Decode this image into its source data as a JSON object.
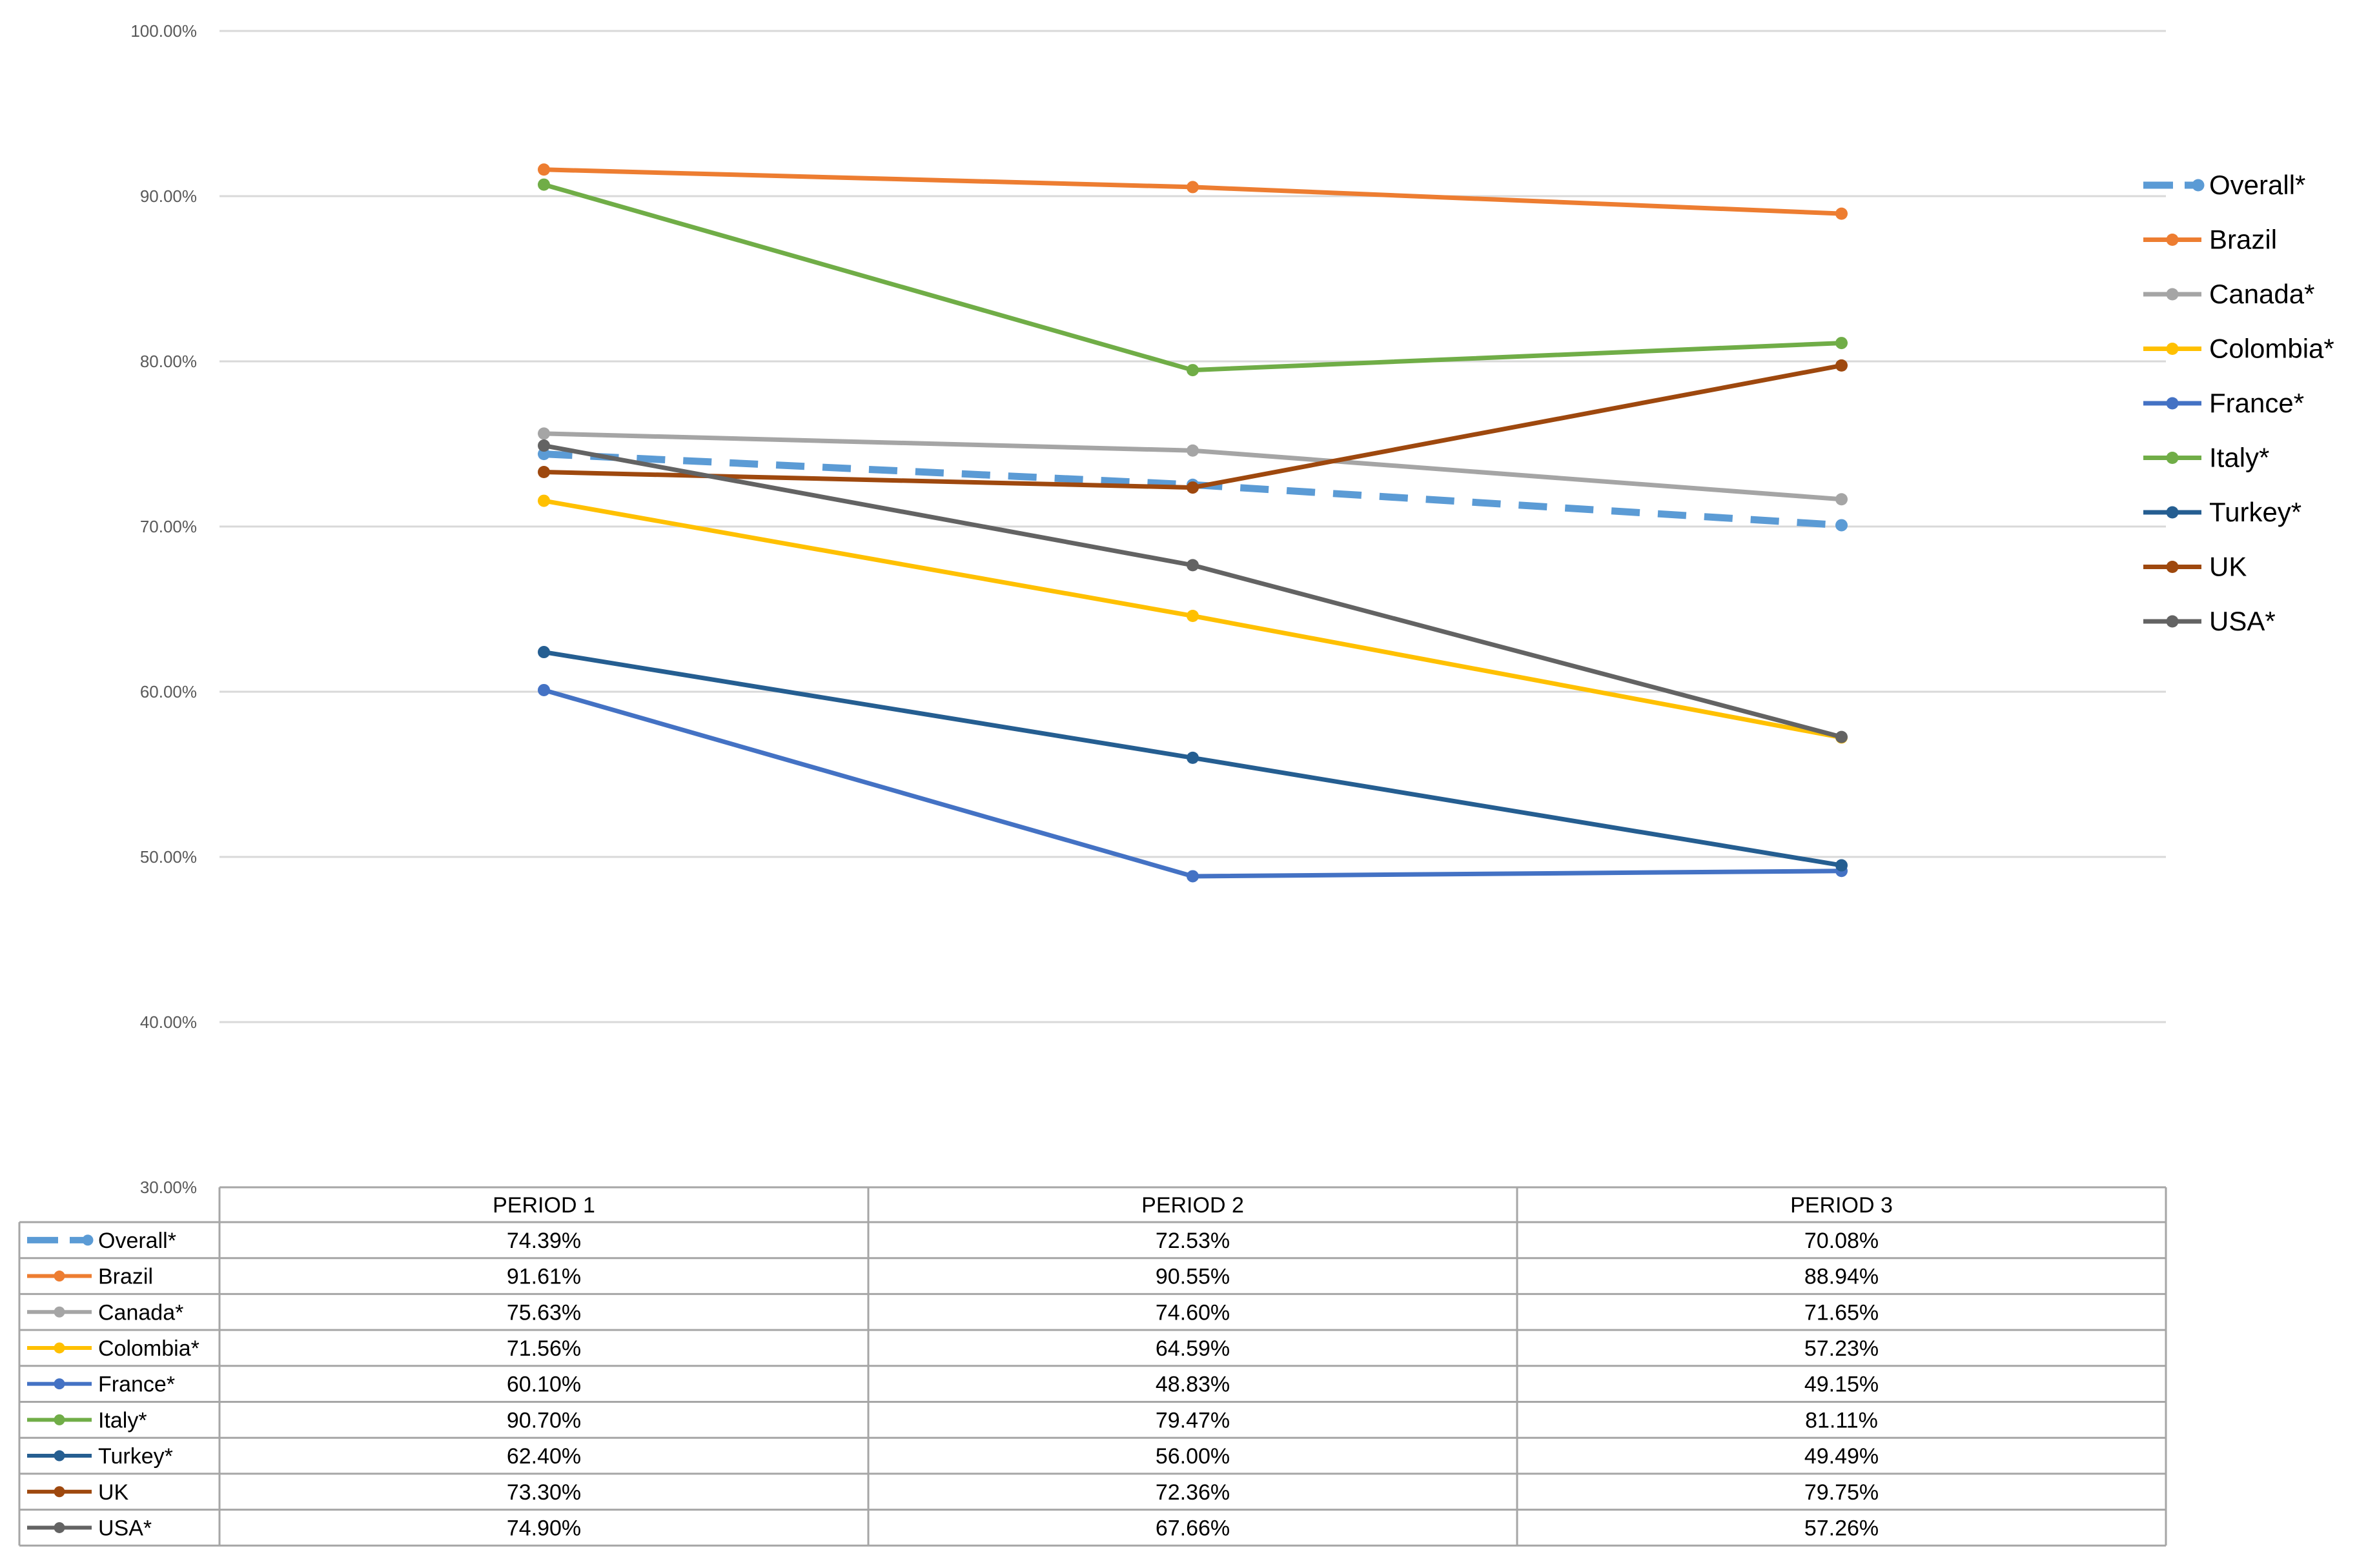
{
  "chart_data": {
    "type": "line",
    "title": "",
    "xlabel": "",
    "ylabel": "",
    "ylim": [
      0.3,
      1.0
    ],
    "y_ticks": [
      {
        "value": 1.0,
        "label": "100.00%"
      },
      {
        "value": 0.9,
        "label": "90.00%"
      },
      {
        "value": 0.8,
        "label": "80.00%"
      },
      {
        "value": 0.7,
        "label": "70.00%"
      },
      {
        "value": 0.6,
        "label": "60.00%"
      },
      {
        "value": 0.5,
        "label": "50.00%"
      },
      {
        "value": 0.4,
        "label": "40.00%"
      },
      {
        "value": 0.3,
        "label": "30.00%"
      }
    ],
    "grid": true,
    "legend_position": "right",
    "categories": [
      "PERIOD 1",
      "PERIOD 2",
      "PERIOD 3"
    ],
    "series": [
      {
        "name": "Overall*",
        "color": "#5b9bd5",
        "dashed": true,
        "values": [
          0.7439,
          0.7253,
          0.7008
        ],
        "labels": [
          "74.39%",
          "72.53%",
          "70.08%"
        ]
      },
      {
        "name": "Brazil",
        "color": "#ed7d31",
        "dashed": false,
        "values": [
          0.9161,
          0.9055,
          0.8894
        ],
        "labels": [
          "91.61%",
          "90.55%",
          "88.94%"
        ]
      },
      {
        "name": "Canada*",
        "color": "#a5a5a5",
        "dashed": false,
        "values": [
          0.7563,
          0.746,
          0.7165
        ],
        "labels": [
          "75.63%",
          "74.60%",
          "71.65%"
        ]
      },
      {
        "name": "Colombia*",
        "color": "#ffc000",
        "dashed": false,
        "values": [
          0.7156,
          0.6459,
          0.5723
        ],
        "labels": [
          "71.56%",
          "64.59%",
          "57.23%"
        ]
      },
      {
        "name": "France*",
        "color": "#4472c4",
        "dashed": false,
        "values": [
          0.601,
          0.4883,
          0.4915
        ],
        "labels": [
          "60.10%",
          "48.83%",
          "49.15%"
        ]
      },
      {
        "name": "Italy*",
        "color": "#70ad47",
        "dashed": false,
        "values": [
          0.907,
          0.7947,
          0.8111
        ],
        "labels": [
          "90.70%",
          "79.47%",
          "81.11%"
        ]
      },
      {
        "name": "Turkey*",
        "color": "#255e91",
        "dashed": false,
        "values": [
          0.624,
          0.56,
          0.4949
        ],
        "labels": [
          "62.40%",
          "56.00%",
          "49.49%"
        ]
      },
      {
        "name": "UK",
        "color": "#9e480e",
        "dashed": false,
        "values": [
          0.733,
          0.7236,
          0.7975
        ],
        "labels": [
          "73.30%",
          "72.36%",
          "79.75%"
        ]
      },
      {
        "name": "USA*",
        "color": "#636363",
        "dashed": false,
        "values": [
          0.749,
          0.6766,
          0.5726
        ],
        "labels": [
          "74.90%",
          "67.66%",
          "57.26%"
        ]
      }
    ]
  }
}
